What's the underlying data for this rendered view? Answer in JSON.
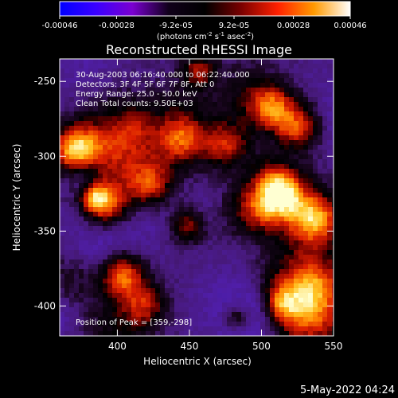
{
  "chart_data": {
    "type": "heatmap",
    "title": "Reconstructed RHESSI Image",
    "xlabel": "Heliocentric X (arcsec)",
    "ylabel": "Heliocentric Y (arcsec)",
    "xlim": [
      360,
      550
    ],
    "ylim": [
      -420,
      -235
    ],
    "xticks": [
      "400",
      "450",
      "500",
      "550"
    ],
    "yticks": [
      "-250",
      "-300",
      "-350",
      "-400"
    ],
    "colorbar": {
      "ticks": [
        "-0.00046",
        "-0.00028",
        "-9.2e-05",
        "9.2e-05",
        "0.00028",
        "0.00046"
      ],
      "range": [
        -0.00046,
        0.00046
      ],
      "unit_label": "(photons cm-2 s-1 asec-2)",
      "colors": [
        "#0000ff",
        "#3a00ff",
        "#7a00d0",
        "#10001a",
        "#000000",
        "#7a0000",
        "#ff2000",
        "#ff9a00",
        "#ffffff"
      ]
    },
    "annotations": [
      "30-Aug-2003 06:16:40.000 to 06:22:40.000",
      "Detectors: 3F 4F 5F 6F 7F 8F, Att 0",
      "Energy Range: 25.0 - 50.0 keV",
      "Clean    Total counts: 9.50E+03"
    ],
    "peak_label": "Position of Peak = [359,-298]",
    "peak": [
      359,
      -298
    ],
    "grid": false,
    "legend": "none"
  },
  "footer": {
    "timestamp": "5-May-2022 04:24"
  }
}
